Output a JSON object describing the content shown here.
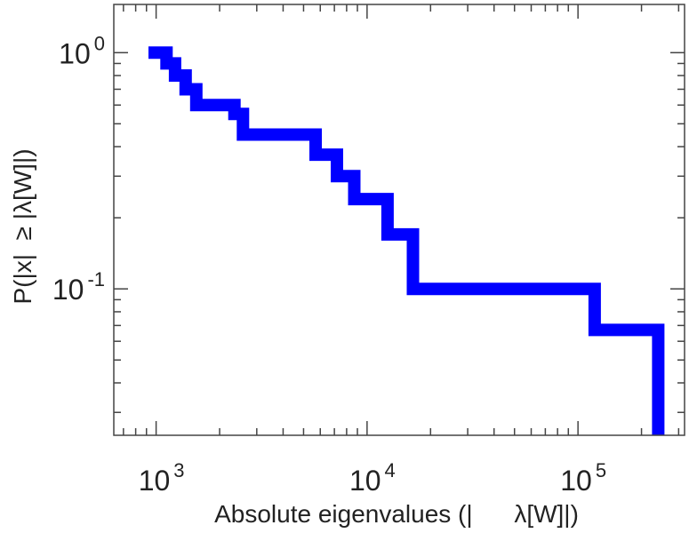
{
  "chart_data": {
    "type": "line",
    "subtype": "step",
    "title": "",
    "xlabel": "Absolute eigenvalues (|      λ[W]|)",
    "ylabel": "P(|x|  ≥ |λ[W]|)",
    "xscale": "log",
    "yscale": "log",
    "xlim": [
      630,
      320000
    ],
    "ylim": [
      0.024,
      1.6
    ],
    "x_ticks": [
      {
        "base": "10",
        "exp": "3",
        "value": 1000
      },
      {
        "base": "10",
        "exp": "4",
        "value": 10000
      },
      {
        "base": "10",
        "exp": "5",
        "value": 100000
      }
    ],
    "y_ticks": [
      {
        "base": "10",
        "exp": "-1",
        "value": 0.1
      },
      {
        "base": "10",
        "exp": "0",
        "value": 1
      }
    ],
    "grid": false,
    "legend": "none",
    "series": [
      {
        "color": "#0000ff",
        "x": [
          920,
          1120,
          1230,
          1380,
          1550,
          2350,
          2580,
          5700,
          7200,
          8700,
          12500,
          16500,
          120000,
          240000,
          240000
        ],
        "y": [
          1.0,
          0.9,
          0.8,
          0.7,
          0.6,
          0.55,
          0.45,
          0.37,
          0.3,
          0.24,
          0.17,
          0.1,
          0.067,
          0.067,
          0.024
        ]
      }
    ]
  }
}
